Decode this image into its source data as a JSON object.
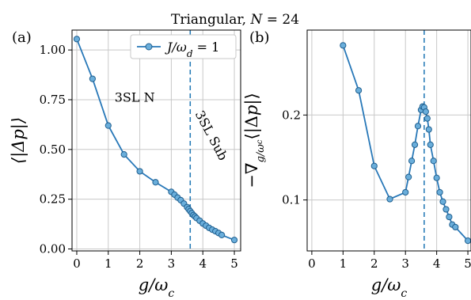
{
  "figure": {
    "title": "Triangular, N = 24",
    "colors": {
      "line": "#2878b8",
      "marker_fill": "#6aaedb",
      "marker_edge": "#1f5f8f",
      "grid": "#c8c8c8",
      "vline": "#1f77b4"
    }
  },
  "chart_data": [
    {
      "panel_label": "(a)",
      "type": "line",
      "title": "",
      "xlabel": "g/ω_c",
      "ylabel": "⟨|Δp|⟩",
      "xlim": [
        -0.15,
        5.2
      ],
      "ylim": [
        -0.01,
        1.1
      ],
      "xticks": [
        0,
        1,
        2,
        3,
        4,
        5
      ],
      "xtick_labels": [
        "0",
        "1",
        "2",
        "3",
        "4",
        "5"
      ],
      "yticks": [
        0.0,
        0.25,
        0.5,
        0.75,
        1.0
      ],
      "ytick_labels": [
        "0.00",
        "0.25",
        "0.50",
        "0.75",
        "1.00"
      ],
      "grid": true,
      "legend_position": "top-right",
      "vline_x": 3.6,
      "annotations": [
        {
          "text": "3SL N",
          "x": 1.2,
          "y": 0.74
        },
        {
          "text": "3SL Sub",
          "x": 3.75,
          "y": 0.68,
          "rotation": 62
        }
      ],
      "series": [
        {
          "name": "J/ω_d = 1",
          "x": [
            0,
            0.5,
            1.0,
            1.5,
            2.0,
            2.5,
            3.0,
            3.1,
            3.2,
            3.3,
            3.4,
            3.5,
            3.55,
            3.6,
            3.65,
            3.7,
            3.75,
            3.8,
            3.9,
            4.0,
            4.1,
            4.2,
            4.3,
            4.4,
            4.5,
            4.6,
            5.0
          ],
          "y": [
            1.055,
            0.855,
            0.62,
            0.475,
            0.39,
            0.335,
            0.287,
            0.273,
            0.258,
            0.245,
            0.228,
            0.21,
            0.2,
            0.19,
            0.18,
            0.17,
            0.163,
            0.155,
            0.142,
            0.128,
            0.117,
            0.106,
            0.097,
            0.089,
            0.08,
            0.07,
            0.045
          ]
        }
      ]
    },
    {
      "panel_label": "(b)",
      "type": "line",
      "title": "",
      "xlabel": "g/ω_c",
      "ylabel": "−∇_{g/ω_c}⟨|Δp|⟩",
      "xlim": [
        -0.15,
        5.1
      ],
      "ylim": [
        0.04,
        0.3
      ],
      "xticks": [
        0,
        1,
        2,
        3,
        4,
        5
      ],
      "xtick_labels": [
        "0",
        "1",
        "2",
        "3",
        "4",
        "5"
      ],
      "yticks": [
        0.1,
        0.2
      ],
      "ytick_labels": [
        "0.1",
        "0.2"
      ],
      "grid": true,
      "vline_x": 3.6,
      "series": [
        {
          "name": "",
          "x": [
            1.0,
            1.5,
            2.0,
            2.5,
            3.0,
            3.1,
            3.2,
            3.3,
            3.4,
            3.5,
            3.55,
            3.6,
            3.65,
            3.7,
            3.75,
            3.8,
            3.9,
            4.0,
            4.1,
            4.2,
            4.3,
            4.4,
            4.5,
            4.6,
            5.0
          ],
          "y": [
            0.282,
            0.229,
            0.14,
            0.101,
            0.109,
            0.127,
            0.146,
            0.165,
            0.187,
            0.206,
            0.21,
            0.209,
            0.204,
            0.196,
            0.183,
            0.165,
            0.146,
            0.126,
            0.109,
            0.098,
            0.089,
            0.08,
            0.071,
            0.068,
            0.052
          ]
        }
      ]
    }
  ]
}
